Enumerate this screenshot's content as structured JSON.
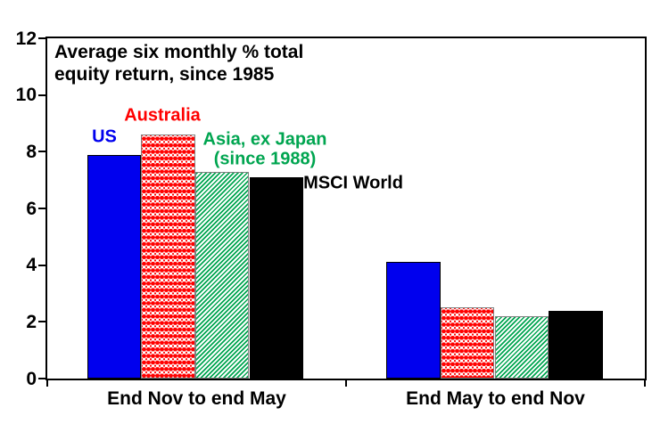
{
  "chart_data": {
    "type": "bar",
    "title_lines": [
      "Average six monthly % total",
      "equity return, since 1985"
    ],
    "categories": [
      "End Nov to end May",
      "End May to end Nov"
    ],
    "y_ticks": [
      0,
      2,
      4,
      6,
      8,
      10,
      12
    ],
    "ylim": [
      0,
      12
    ],
    "grid": false,
    "legend_position": "inline-annotations",
    "background": "#FFFFFF",
    "axis_color": "#000000",
    "series": [
      {
        "key": "us",
        "name": "US",
        "label_lines": [
          "US"
        ],
        "color": "#0000EE",
        "border_color": "#000000",
        "pattern": "solid",
        "values": [
          7.9,
          4.1
        ]
      },
      {
        "key": "australia",
        "name": "Australia",
        "label_lines": [
          "Australia"
        ],
        "color": "#FF0000",
        "border_color": "#808080",
        "pattern": "red-dot-grid",
        "values": [
          8.6,
          2.5
        ]
      },
      {
        "key": "asia-ex-japan",
        "name": "Asia, ex Japan (since 1988)",
        "label_lines": [
          "Asia, ex Japan",
          "(since 1988)"
        ],
        "color": "#00A550",
        "border_color": "#808080",
        "pattern": "diagonal-hatch-up",
        "values": [
          7.3,
          2.2
        ]
      },
      {
        "key": "msci-world",
        "name": "MSCI World",
        "label_lines": [
          "MSCI World"
        ],
        "color": "#000000",
        "border_color": "#000000",
        "pattern": "solid",
        "values": [
          7.1,
          2.4
        ]
      }
    ]
  }
}
